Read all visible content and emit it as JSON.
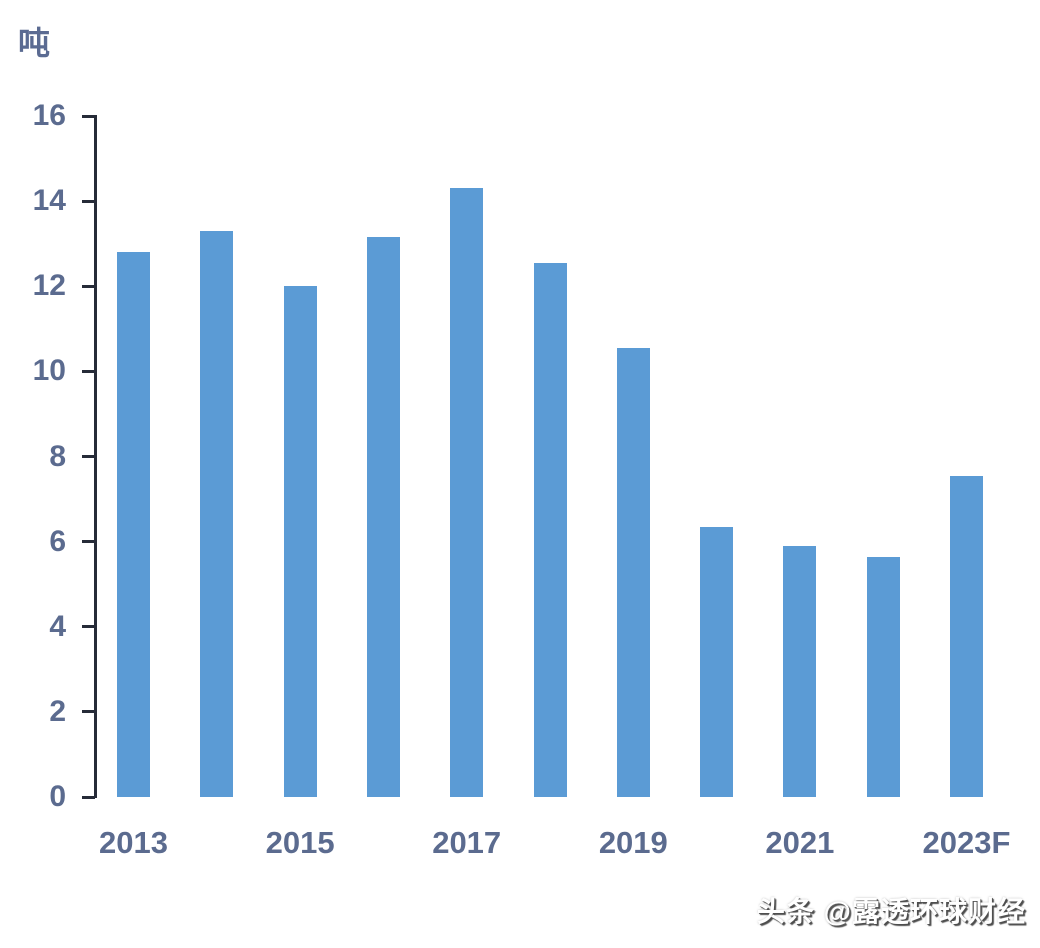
{
  "chart_data": {
    "type": "bar",
    "title": "",
    "ylabel": "吨",
    "xlabel": "",
    "categories": [
      "2013",
      "2014",
      "2015",
      "2016",
      "2017",
      "2018",
      "2019",
      "2020",
      "2021",
      "2022",
      "2023F"
    ],
    "values": [
      12.8,
      13.3,
      12.0,
      13.15,
      14.3,
      12.55,
      10.55,
      6.35,
      5.9,
      5.65,
      7.55
    ],
    "ylim": [
      0,
      16
    ],
    "ytick_step": 2,
    "ytick_labels": [
      "0",
      "2",
      "4",
      "6",
      "8",
      "10",
      "12",
      "14",
      "16"
    ],
    "xtick_labels_shown": [
      "2013",
      "2015",
      "2017",
      "2019",
      "2021",
      "2023F"
    ],
    "grid": false,
    "legend_position": "none",
    "bar_color": "#5b9bd5",
    "axis_color": "#262b38",
    "tick_label_color": "#5b6b8f"
  },
  "watermark": {
    "text": "头条 @露透环球财经"
  }
}
